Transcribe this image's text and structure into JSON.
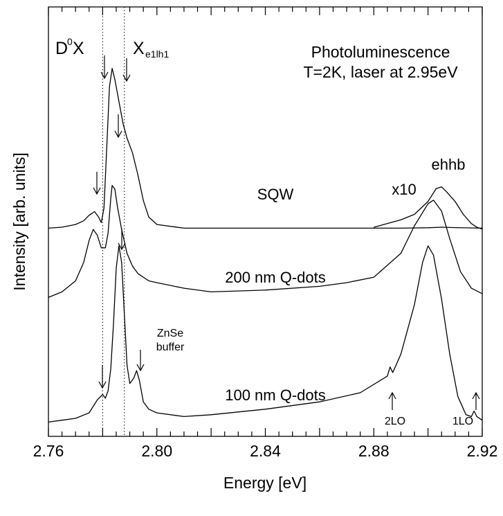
{
  "chart_data": {
    "type": "line",
    "xlabel": "Energy [eV]",
    "ylabel": "Intensity [arb. units]",
    "xlim": [
      2.76,
      2.92
    ],
    "x_ticks": [
      "2.76",
      "2.80",
      "2.84",
      "2.88",
      "2.92"
    ],
    "grid": false,
    "legend": "none",
    "reference_lines_x": [
      2.78,
      2.788
    ],
    "annotations": {
      "title_line1": "Photoluminescence",
      "title_line2": "T=2K, laser at 2.95eV",
      "d0x_main": "D",
      "d0x_sup": "0",
      "d0x_tail": "X",
      "xe_main": "X",
      "xe_sub": "e1lh1",
      "sqw": "SQW",
      "x10": "x10",
      "ehhb": "ehhb",
      "qd200": "200 nm Q-dots",
      "qd100": "100 nm Q-dots",
      "znse_line1": "ZnSe",
      "znse_line2": "buffer",
      "lo2": "2LO",
      "lo1": "1LO"
    },
    "series": [
      {
        "name": "SQW",
        "x": [
          2.76,
          2.765,
          2.77,
          2.773,
          2.775,
          2.777,
          2.7785,
          2.7795,
          2.7805,
          2.7815,
          2.7825,
          2.7835,
          2.7845,
          2.786,
          2.7875,
          2.789,
          2.791,
          2.793,
          2.795,
          2.797,
          2.8,
          2.81,
          2.84,
          2.87,
          2.89,
          2.9,
          2.905,
          2.91,
          2.92
        ],
        "y": [
          0.01,
          0.015,
          0.03,
          0.05,
          0.08,
          0.1,
          0.07,
          0.04,
          0.12,
          0.45,
          0.78,
          0.88,
          0.82,
          0.7,
          0.58,
          0.5,
          0.42,
          0.3,
          0.16,
          0.07,
          0.03,
          0.01,
          0.01,
          0.01,
          0.01,
          0.012,
          0.015,
          0.013,
          0.01
        ]
      },
      {
        "name": "SQW x10",
        "x": [
          2.88,
          2.885,
          2.89,
          2.895,
          2.9,
          2.903,
          2.905,
          2.907,
          2.91,
          2.913,
          2.916,
          2.918,
          2.92
        ],
        "y": [
          0.03,
          0.05,
          0.07,
          0.1,
          0.17,
          0.24,
          0.25,
          0.22,
          0.17,
          0.1,
          0.05,
          0.03,
          0.02
        ]
      },
      {
        "name": "200 nm Q-dots",
        "x": [
          2.76,
          2.765,
          2.77,
          2.773,
          2.775,
          2.7765,
          2.778,
          2.7795,
          2.781,
          2.782,
          2.783,
          2.7835,
          2.7845,
          2.7855,
          2.787,
          2.789,
          2.791,
          2.793,
          2.797,
          2.8,
          2.81,
          2.82,
          2.84,
          2.86,
          2.87,
          2.88,
          2.89,
          2.895,
          2.9,
          2.902,
          2.905,
          2.908,
          2.912,
          2.916,
          2.92
        ],
        "y": [
          0.01,
          0.04,
          0.1,
          0.2,
          0.32,
          0.38,
          0.35,
          0.28,
          0.28,
          0.36,
          0.55,
          0.62,
          0.6,
          0.5,
          0.38,
          0.25,
          0.18,
          0.14,
          0.1,
          0.09,
          0.06,
          0.04,
          0.05,
          0.07,
          0.09,
          0.12,
          0.25,
          0.4,
          0.52,
          0.54,
          0.48,
          0.33,
          0.15,
          0.06,
          0.03
        ]
      },
      {
        "name": "100 nm Q-dots",
        "x": [
          2.76,
          2.765,
          2.77,
          2.775,
          2.778,
          2.78,
          2.781,
          2.782,
          2.783,
          2.784,
          2.785,
          2.786,
          2.787,
          2.788,
          2.789,
          2.79,
          2.7915,
          2.7925,
          2.7935,
          2.795,
          2.797,
          2.8,
          2.81,
          2.82,
          2.84,
          2.86,
          2.875,
          2.885,
          2.886,
          2.887,
          2.89,
          2.895,
          2.898,
          2.9,
          2.902,
          2.905,
          2.908,
          2.911,
          2.914,
          2.916,
          2.917,
          2.918,
          2.92
        ],
        "y": [
          0.01,
          0.02,
          0.03,
          0.06,
          0.13,
          0.16,
          0.14,
          0.18,
          0.3,
          0.55,
          0.85,
          0.97,
          0.88,
          0.6,
          0.32,
          0.22,
          0.25,
          0.29,
          0.24,
          0.12,
          0.08,
          0.06,
          0.04,
          0.05,
          0.08,
          0.12,
          0.17,
          0.26,
          0.31,
          0.28,
          0.38,
          0.65,
          0.88,
          0.97,
          0.92,
          0.68,
          0.38,
          0.15,
          0.05,
          0.04,
          0.07,
          0.04,
          0.02
        ]
      }
    ]
  }
}
